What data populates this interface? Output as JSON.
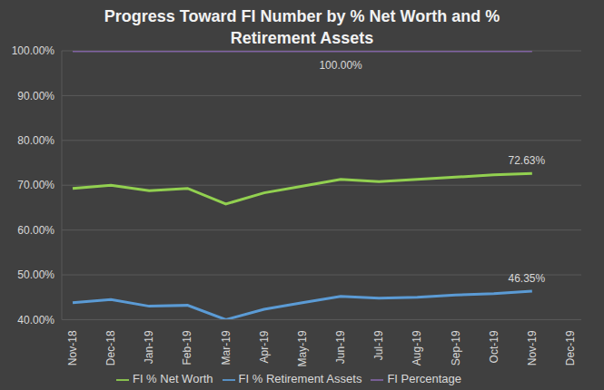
{
  "chart_data": {
    "type": "line",
    "title": "Progress Toward FI Number by % Net Worth and % Retirement Assets",
    "categories": [
      "Nov-18",
      "Dec-18",
      "Jan-19",
      "Feb-19",
      "Mar-19",
      "Apr-19",
      "May-19",
      "Jun-19",
      "Jul-19",
      "Aug-19",
      "Sep-19",
      "Oct-19",
      "Nov-19",
      "Dec-19"
    ],
    "series": [
      {
        "name": "FI % Retirement Assets",
        "color": "#5b9bd5",
        "values": [
          43.8,
          44.5,
          43.0,
          43.2,
          40.0,
          42.3,
          43.8,
          45.2,
          44.8,
          45.0,
          45.5,
          45.8,
          46.35,
          null
        ],
        "value_labels": [
          null,
          null,
          null,
          null,
          null,
          null,
          null,
          null,
          null,
          null,
          null,
          null,
          "46.35%",
          null
        ]
      },
      {
        "name": "FI % Net Worth",
        "color": "#92d050",
        "values": [
          69.3,
          70.0,
          68.8,
          69.3,
          65.8,
          68.3,
          69.8,
          71.3,
          70.8,
          71.3,
          71.8,
          72.3,
          72.63,
          null
        ],
        "value_labels": [
          null,
          null,
          null,
          null,
          null,
          null,
          null,
          null,
          null,
          null,
          null,
          null,
          "72.63%",
          null
        ]
      },
      {
        "name": "FI Percentage",
        "color": "#8064a2",
        "values": [
          100,
          100,
          100,
          100,
          100,
          100,
          100,
          100,
          100,
          100,
          100,
          100,
          100,
          null
        ],
        "value_labels": [
          null,
          null,
          null,
          null,
          null,
          null,
          null,
          "100.00%",
          null,
          null,
          null,
          null,
          null,
          null
        ]
      }
    ],
    "ylim": [
      40,
      100
    ],
    "yticks": [
      {
        "value": 40,
        "label": "40.00%"
      },
      {
        "value": 50,
        "label": "50.00%"
      },
      {
        "value": 60,
        "label": "60.00%"
      },
      {
        "value": 70,
        "label": "70.00%"
      },
      {
        "value": 80,
        "label": "80.00%"
      },
      {
        "value": 90,
        "label": "90.00%"
      },
      {
        "value": 100,
        "label": "100.00%"
      }
    ],
    "grid": true,
    "legend": "bottom"
  }
}
